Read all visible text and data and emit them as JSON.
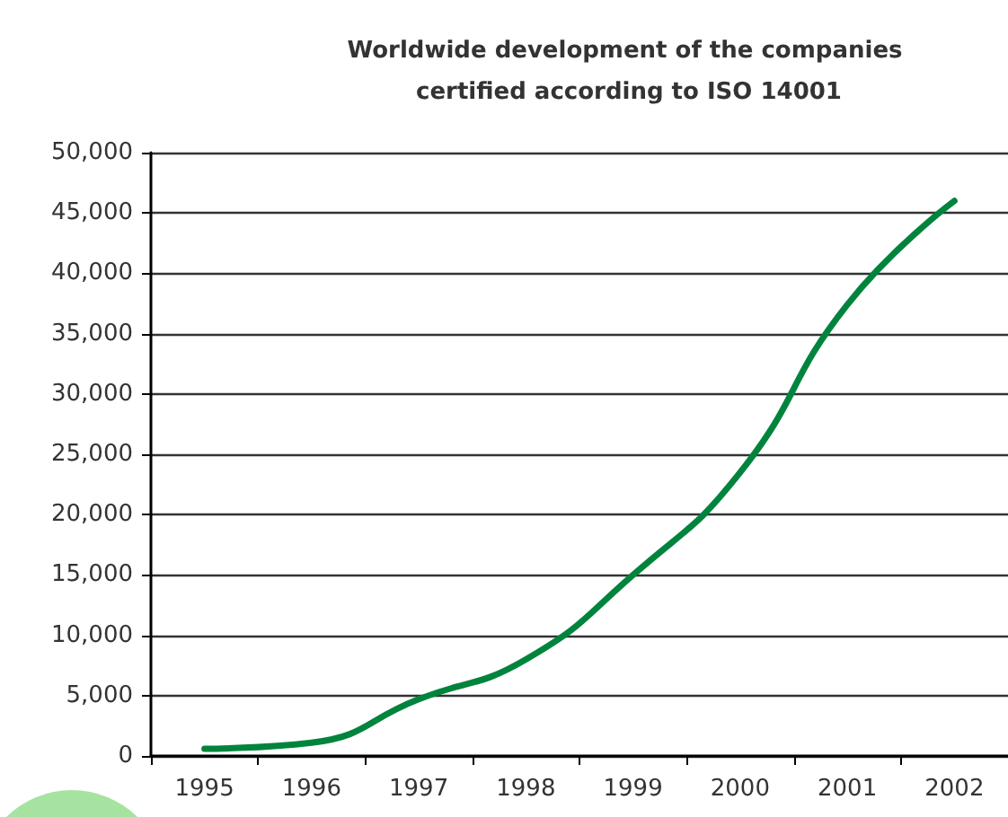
{
  "chart_data": {
    "type": "line",
    "title": "Worldwide development of the companies certified according to ISO 14001",
    "categories": [
      "1995",
      "1996",
      "1997",
      "1998",
      "1999",
      "2000",
      "2001",
      "2002"
    ],
    "series": [
      {
        "color": "#00843d",
        "values": [
          600,
          1100,
          4700,
          8000,
          15000,
          23500,
          37400,
          46000
        ]
      }
    ],
    "ylim": [
      0,
      50000
    ],
    "yticks": [
      {
        "value": 0,
        "label": "0"
      },
      {
        "value": 5000,
        "label": "5,000"
      },
      {
        "value": 10000,
        "label": "10,000"
      },
      {
        "value": 15000,
        "label": "15,000"
      },
      {
        "value": 20000,
        "label": "20,000"
      },
      {
        "value": 25000,
        "label": "25,000"
      },
      {
        "value": 30000,
        "label": "30,000"
      },
      {
        "value": 35000,
        "label": "35,000"
      },
      {
        "value": 40000,
        "label": "40,000"
      },
      {
        "value": 45000,
        "label": "45,000"
      },
      {
        "value": 50000,
        "label": "50,000"
      }
    ],
    "grid": "y",
    "marker": "none",
    "line_style": "solid"
  }
}
